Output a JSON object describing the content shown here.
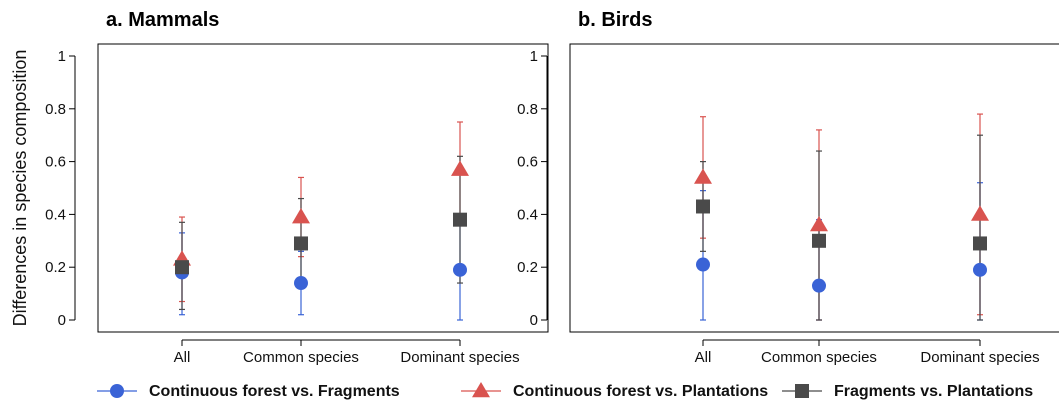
{
  "chart_data": [
    {
      "type": "scatter",
      "title": "a. Mammals",
      "ylabel": "Differences in species composition",
      "xlabel": "",
      "categories": [
        "All",
        "Common species",
        "Dominant species"
      ],
      "ylim": [
        0,
        1
      ],
      "yticks": [
        "0",
        "0.2",
        "0.4",
        "0.6",
        "0.8",
        "1"
      ],
      "series": [
        {
          "name": "Continuous forest vs. Fragments",
          "values": [
            0.18,
            0.14,
            0.19
          ],
          "lower": [
            0.02,
            0.02,
            0.0
          ],
          "upper": [
            0.33,
            0.26,
            0.38
          ]
        },
        {
          "name": "Continuous forest vs. Plantations",
          "values": [
            0.23,
            0.39,
            0.57
          ],
          "lower": [
            0.07,
            0.24,
            0.38
          ],
          "upper": [
            0.39,
            0.54,
            0.75
          ]
        },
        {
          "name": "Fragments vs. Plantations",
          "values": [
            0.2,
            0.29,
            0.38
          ],
          "lower": [
            0.04,
            0.12,
            0.14
          ],
          "upper": [
            0.37,
            0.46,
            0.62
          ]
        }
      ]
    },
    {
      "type": "scatter",
      "title": "b. Birds",
      "ylabel": "",
      "xlabel": "",
      "categories": [
        "All",
        "Common species",
        "Dominant species"
      ],
      "ylim": [
        0,
        1
      ],
      "yticks": [
        "0",
        "0.2",
        "0.4",
        "0.6",
        "0.8",
        "1"
      ],
      "series": [
        {
          "name": "Continuous forest vs. Fragments",
          "values": [
            0.21,
            0.13,
            0.19
          ],
          "lower": [
            0.0,
            0.0,
            0.0
          ],
          "upper": [
            0.49,
            0.38,
            0.52
          ]
        },
        {
          "name": "Continuous forest vs. Plantations",
          "values": [
            0.54,
            0.36,
            0.4
          ],
          "lower": [
            0.31,
            0.0,
            0.02
          ],
          "upper": [
            0.77,
            0.72,
            0.78
          ]
        },
        {
          "name": "Fragments vs. Plantations",
          "values": [
            0.43,
            0.3,
            0.29
          ],
          "lower": [
            0.26,
            0.0,
            0.0
          ],
          "upper": [
            0.6,
            0.64,
            0.7
          ]
        }
      ]
    }
  ],
  "legend": [
    {
      "label": "Continuous forest vs. Fragments",
      "marker": "circle",
      "color": "#3a63d6"
    },
    {
      "label": "Continuous forest vs. Plantations",
      "marker": "triangle",
      "color": "#d9534f"
    },
    {
      "label": "Fragments vs. Plantations",
      "marker": "square",
      "color": "#4a4a4a"
    }
  ],
  "series_colors": [
    "#3a63d6",
    "#d9534f",
    "#4a4a4a"
  ]
}
